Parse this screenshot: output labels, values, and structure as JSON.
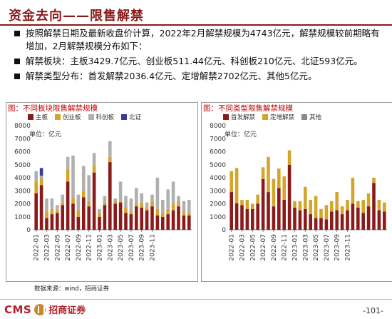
{
  "page": {
    "title": "资金去向——限售解禁",
    "bullets": [
      "按照解禁日期及最新收盘价计算，2022年2月解禁规模为4743亿元，解禁规模较前期略有增加，2月解禁规模分布如下：",
      "解禁板块：主板3429.7亿元、创业板511.44亿元、科创板210亿元、北证593亿元。",
      "解禁类型分布：首发解禁2036.4亿元、定增解禁2702亿元、其他5亿元。"
    ],
    "source": "数据来源：wind，招商证券",
    "logo": {
      "cms": "CMS",
      "name": "招商证券"
    },
    "page_number": "-101-"
  },
  "chart_data": [
    {
      "type": "bar",
      "stacked": true,
      "title": "图：不同板块限售解禁规模",
      "unit_label": "单位：亿元",
      "ylim": [
        0,
        8000
      ],
      "yticks": [
        0,
        1000,
        2000,
        3000,
        4000,
        5000,
        6000,
        7000,
        8000
      ],
      "x_tick_labels": [
        "2022-01",
        "2022-03",
        "2022-05",
        "2022-07",
        "2022-09",
        "2022-11",
        "2023-01",
        "2023-03",
        "2023-05",
        "2023-07",
        "2023-09",
        "2023-11"
      ],
      "legend_position": "top",
      "grid": false,
      "series": [
        {
          "name": "主板",
          "color": "#8b1a1a",
          "values": [
            2800,
            3430,
            900,
            1200,
            1300,
            1900,
            3700,
            2000,
            1000,
            2500,
            1800,
            4400,
            1000,
            1900,
            5200,
            2000,
            2100,
            1300,
            1200,
            1800,
            1700,
            1500,
            1800,
            1100,
            1000,
            1200,
            1500,
            1800,
            1100,
            1100
          ]
        },
        {
          "name": "创业板",
          "color": "#d4a52a",
          "values": [
            900,
            511,
            500,
            400,
            200,
            200,
            1000,
            500,
            500,
            500,
            400,
            500,
            300,
            200,
            400,
            200,
            100,
            400,
            200,
            300,
            400,
            200,
            400,
            500,
            300,
            400,
            500,
            400,
            300,
            200
          ]
        },
        {
          "name": "科创板",
          "color": "#b0b0b0",
          "values": [
            800,
            210,
            1000,
            800,
            400,
            600,
            900,
            3200,
            1200,
            1900,
            2000,
            1000,
            300,
            500,
            1200,
            200,
            1500,
            900,
            1000,
            1100,
            700,
            400,
            500,
            2400,
            1000,
            1500,
            1700,
            400,
            800,
            1000
          ]
        },
        {
          "name": "北证",
          "color": "#3a3a9a",
          "values": [
            0,
            593,
            0,
            0,
            0,
            0,
            0,
            0,
            0,
            0,
            0,
            0,
            0,
            0,
            0,
            0,
            0,
            0,
            0,
            0,
            0,
            0,
            0,
            0,
            0,
            0,
            0,
            0,
            0,
            0
          ]
        }
      ]
    },
    {
      "type": "bar",
      "stacked": true,
      "title": "图：不同类型限售解禁规模",
      "unit_label": "单位：亿元",
      "ylim": [
        0,
        8000
      ],
      "yticks": [
        0,
        1000,
        2000,
        3000,
        4000,
        5000,
        6000,
        7000,
        8000
      ],
      "x_tick_labels": [
        "2022-01",
        "2022-03",
        "2022-05",
        "2022-07",
        "2022-09",
        "2022-11",
        "2023-01",
        "2023-03",
        "2023-05",
        "2023-07",
        "2023-09",
        "2023-11"
      ],
      "legend_position": "top",
      "grid": false,
      "series": [
        {
          "name": "首发解禁",
          "color": "#8b1a1a",
          "values": [
            2900,
            2036,
            1900,
            1600,
            1600,
            2000,
            3900,
            2900,
            1800,
            3200,
            2300,
            5000,
            1700,
            1500,
            1600,
            1200,
            900,
            900,
            800,
            1400,
            1500,
            1200,
            1500,
            2000,
            1700,
            1300,
            1800,
            3600,
            1500,
            1400
          ]
        },
        {
          "name": "定增解禁",
          "color": "#d4a52a",
          "values": [
            1600,
            2702,
            400,
            700,
            400,
            700,
            900,
            2700,
            2100,
            1500,
            1800,
            1100,
            500,
            700,
            1700,
            1100,
            1700,
            700,
            1100,
            800,
            1400,
            600,
            800,
            2000,
            500,
            1000,
            1000,
            400,
            800,
            700
          ]
        },
        {
          "name": "其他",
          "color": "#8a8a8a",
          "values": [
            0,
            5,
            0,
            0,
            0,
            0,
            0,
            0,
            0,
            0,
            0,
            0,
            0,
            0,
            0,
            0,
            0,
            0,
            0,
            0,
            0,
            0,
            0,
            0,
            0,
            0,
            0,
            0,
            0,
            0
          ]
        }
      ]
    }
  ]
}
